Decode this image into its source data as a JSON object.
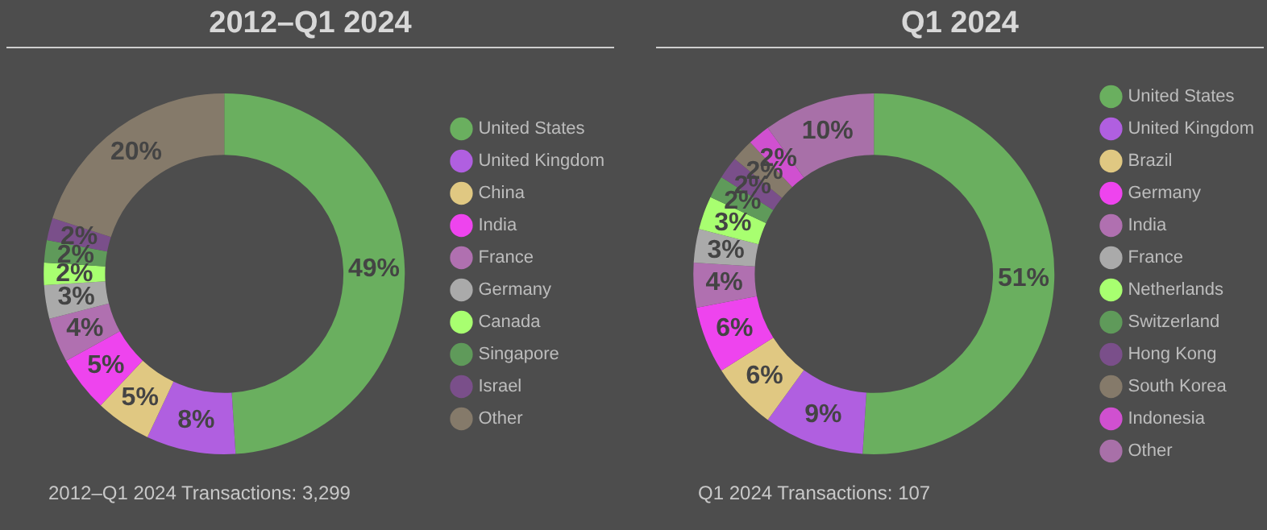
{
  "chart_data": [
    {
      "type": "donut",
      "title": "2012–Q1 2024",
      "categories": [
        "United States",
        "United Kingdom",
        "China",
        "India",
        "France",
        "Germany",
        "Canada",
        "Singapore",
        "Israel",
        "Other"
      ],
      "values": [
        49,
        8,
        5,
        5,
        4,
        3,
        2,
        2,
        2,
        20
      ],
      "value_labels": [
        "49%",
        "8%",
        "5%",
        "5%",
        "4%",
        "3%",
        "2%",
        "2%",
        "2%",
        "20%"
      ],
      "colors": [
        "#6aaf5f",
        "#b05fe0",
        "#e0c882",
        "#ee44ee",
        "#b070b0",
        "#aaaaaa",
        "#a8ff70",
        "#5f9a5a",
        "#7a4f8a",
        "#857a6a"
      ],
      "legend": "right",
      "annotations": [
        "2012–Q1 2024 Transactions: 3,299"
      ]
    },
    {
      "type": "donut",
      "title": "Q1 2024",
      "categories": [
        "United States",
        "United Kingdom",
        "Brazil",
        "Germany",
        "India",
        "France",
        "Netherlands",
        "Switzerland",
        "Hong Kong",
        "South Korea",
        "Indonesia",
        "Other"
      ],
      "values": [
        51,
        9,
        6,
        6,
        4,
        3,
        3,
        2,
        2,
        2,
        2,
        10
      ],
      "value_labels": [
        "51%",
        "9%",
        "6%",
        "6%",
        "4%",
        "3%",
        "3%",
        "2%",
        "2%",
        "2%",
        "2%",
        "10%"
      ],
      "colors": [
        "#6aaf5f",
        "#b05fe0",
        "#e0c882",
        "#ee44ee",
        "#b070b0",
        "#aaaaaa",
        "#a8ff70",
        "#5f9a5a",
        "#7a4f8a",
        "#857a6a",
        "#d050d0",
        "#a870a8"
      ],
      "legend": "right",
      "annotations": [
        "Q1 2024 Transactions: 107"
      ]
    }
  ]
}
